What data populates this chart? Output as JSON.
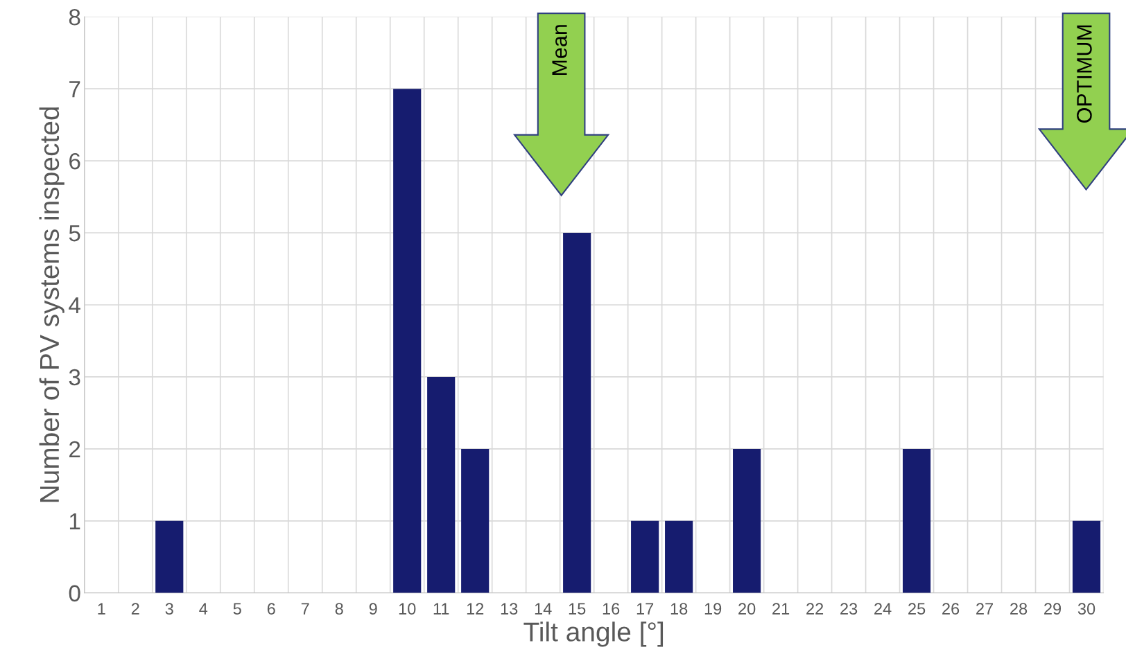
{
  "chart_data": {
    "type": "bar",
    "xlabel": "Tilt angle [°]",
    "ylabel": "Number of PV systems inspected",
    "categories": [
      "1",
      "2",
      "3",
      "4",
      "5",
      "6",
      "7",
      "8",
      "9",
      "10",
      "11",
      "12",
      "13",
      "14",
      "15",
      "16",
      "17",
      "18",
      "19",
      "20",
      "21",
      "22",
      "23",
      "24",
      "25",
      "26",
      "27",
      "28",
      "29",
      "30"
    ],
    "values": [
      0,
      0,
      1,
      0,
      0,
      0,
      0,
      0,
      0,
      7,
      3,
      2,
      0,
      0,
      5,
      0,
      1,
      1,
      0,
      2,
      0,
      0,
      0,
      0,
      2,
      0,
      0,
      0,
      0,
      1
    ],
    "color": "#161c6f",
    "ylim": [
      0,
      8
    ],
    "yticks": [
      0,
      1,
      2,
      3,
      4,
      5,
      6,
      7,
      8
    ],
    "grid": true,
    "annotations": [
      "Mean",
      "OPTIMUM"
    ]
  }
}
